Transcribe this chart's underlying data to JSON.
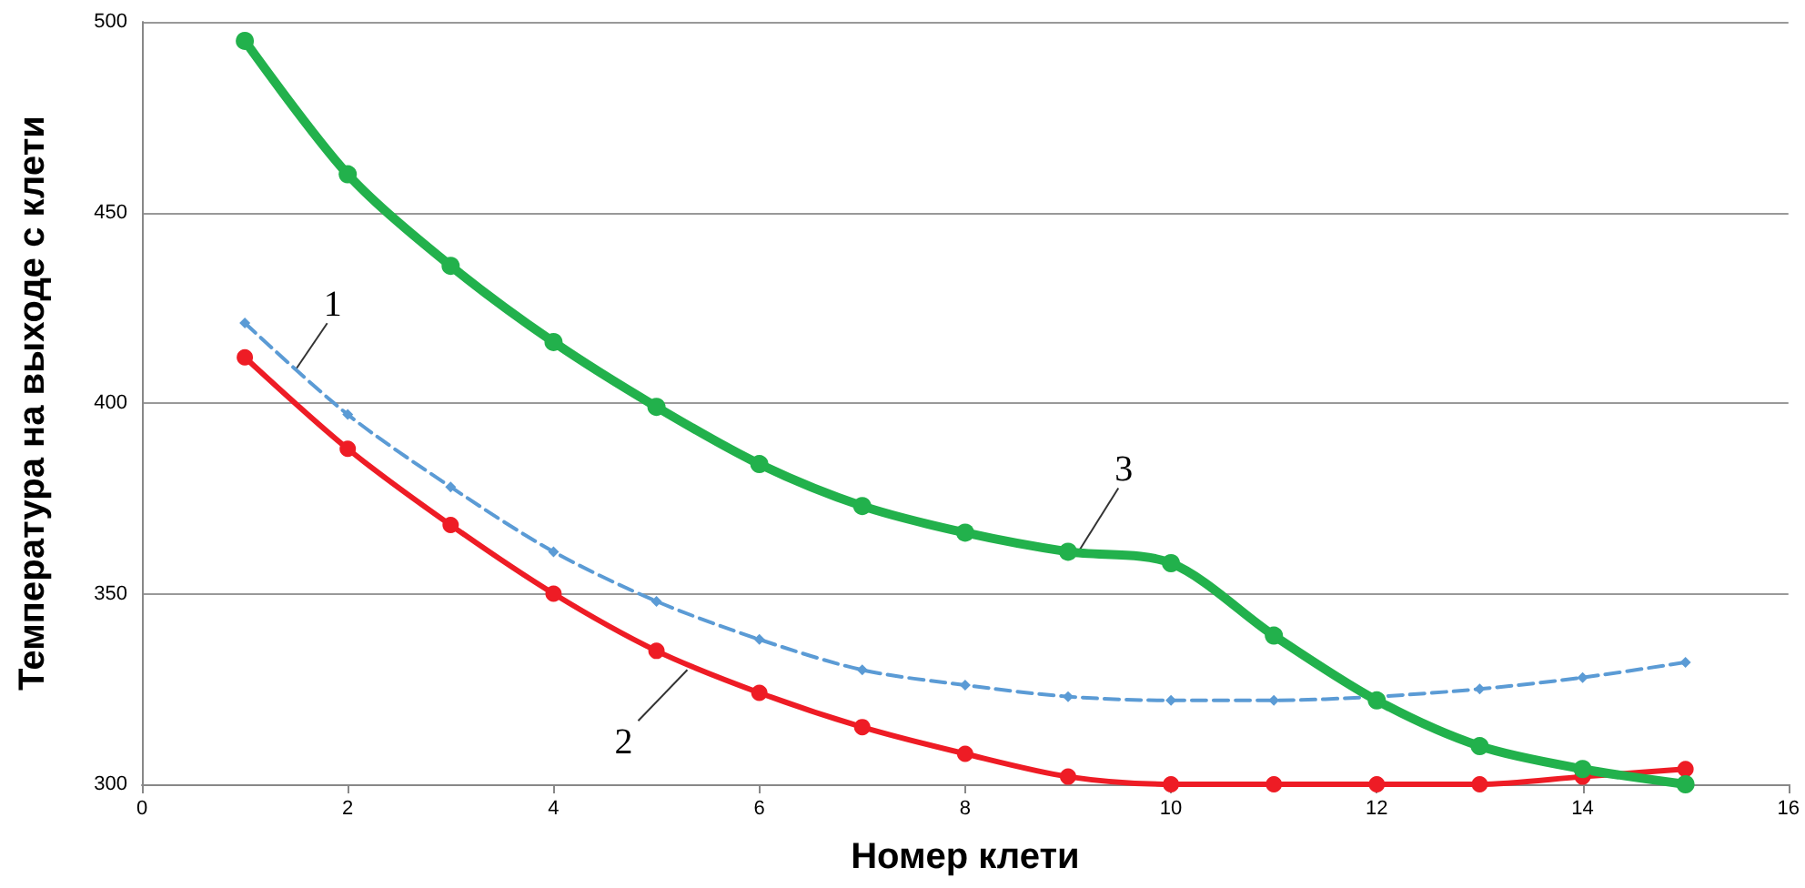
{
  "chart_data": {
    "type": "line",
    "xlabel": "Номер клети",
    "ylabel": "Температура на выходе с клети",
    "x": [
      1,
      2,
      3,
      4,
      5,
      6,
      7,
      8,
      9,
      10,
      11,
      12,
      13,
      14,
      15
    ],
    "xlim": [
      0,
      16
    ],
    "xticks": [
      0,
      2,
      4,
      6,
      8,
      10,
      12,
      14,
      16
    ],
    "ylim": [
      300,
      500
    ],
    "yticks": [
      300,
      350,
      400,
      450,
      500
    ],
    "grid": "y",
    "series": [
      {
        "color": "#5b9bd5",
        "marker": "diamond",
        "line_style": "dashed",
        "values": [
          421,
          397,
          378,
          361,
          348,
          338,
          330,
          326,
          323,
          322,
          322,
          323,
          325,
          328,
          332
        ]
      },
      {
        "color": "#ee1c25",
        "marker": "circle",
        "line_style": "solid",
        "values": [
          412,
          388,
          368,
          350,
          335,
          324,
          315,
          308,
          302,
          300,
          300,
          300,
          300,
          302,
          304
        ]
      },
      {
        "color": "#22b14c",
        "marker": "circle",
        "line_style": "solid",
        "values": [
          495,
          460,
          436,
          416,
          399,
          384,
          373,
          366,
          361,
          358,
          339,
          322,
          310,
          304,
          300
        ]
      }
    ],
    "annotations": [
      {
        "text": "1",
        "x": 1.5,
        "y": 409
      },
      {
        "text": "2",
        "x": 5.3,
        "y": 330
      },
      {
        "text": "3",
        "x": 9.1,
        "y": 361
      }
    ]
  }
}
